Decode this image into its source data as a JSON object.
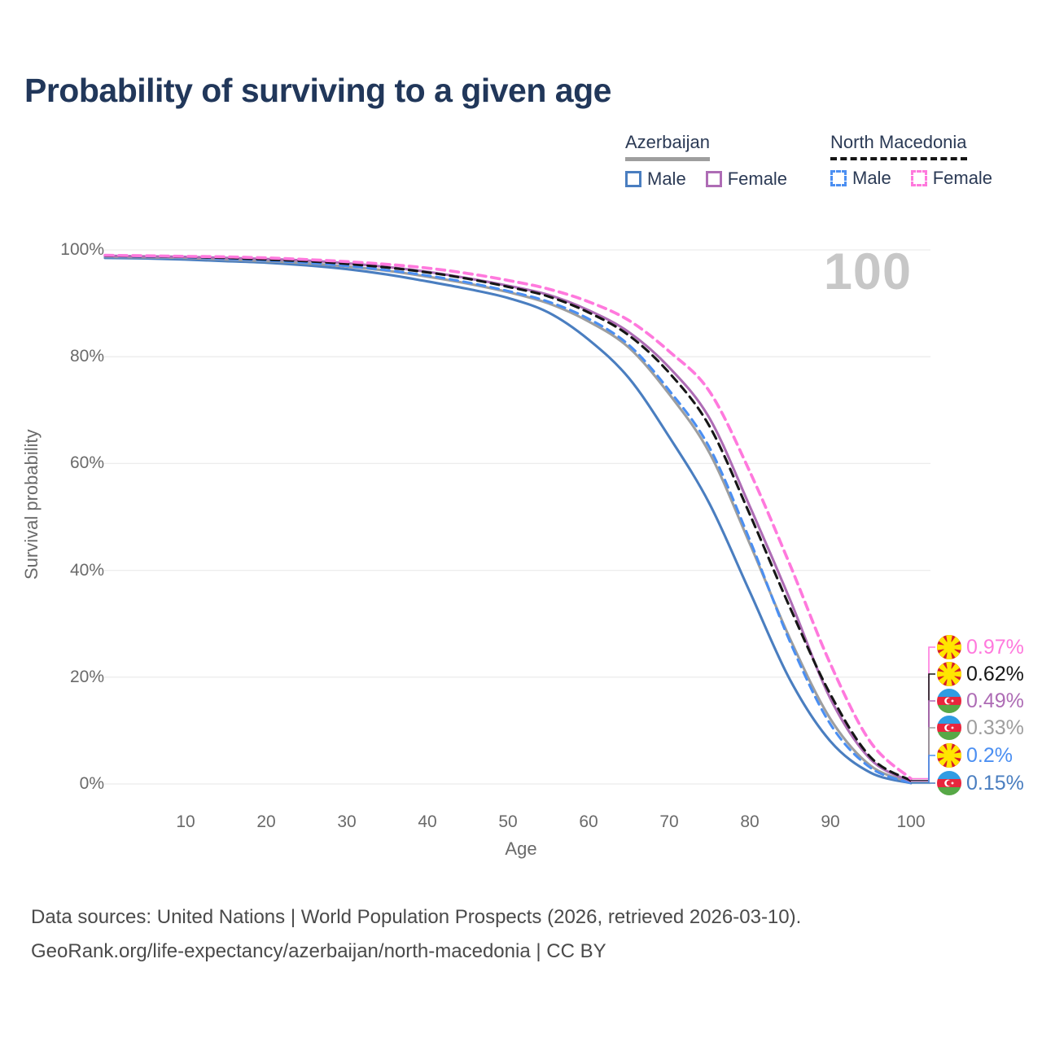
{
  "page": {
    "title": "Probability of surviving to a given age"
  },
  "watermark": "100",
  "legend": {
    "groups": [
      {
        "title": "Azerbaijan",
        "underline": {
          "style": "solid",
          "color": "#9e9e9e"
        },
        "items": [
          {
            "label": "Male",
            "color": "#4a7ec0",
            "dashed": false
          },
          {
            "label": "Female",
            "color": "#ae6cb5",
            "dashed": false
          }
        ]
      },
      {
        "title": "North Macedonia",
        "underline": {
          "style": "dashed",
          "color": "#161616"
        },
        "items": [
          {
            "label": "Male",
            "color": "#4b8ff2",
            "dashed": true
          },
          {
            "label": "Female",
            "color": "#ff79dd",
            "dashed": true
          }
        ]
      }
    ]
  },
  "chart_data": {
    "type": "line",
    "title": "Probability of surviving to a given age",
    "xlabel": "Age",
    "ylabel": "Survival probability",
    "xlim": [
      0,
      100
    ],
    "ylim": [
      0,
      100
    ],
    "grid": "horizontal",
    "legend_position": "top-right",
    "x_ticks": [
      "10",
      "20",
      "30",
      "40",
      "50",
      "60",
      "70",
      "80",
      "90",
      "100"
    ],
    "y_ticks": [
      "0%",
      "20%",
      "40%",
      "60%",
      "80%",
      "100%"
    ],
    "ages": [
      0,
      5,
      10,
      15,
      20,
      25,
      30,
      35,
      40,
      45,
      50,
      55,
      60,
      65,
      70,
      75,
      80,
      85,
      90,
      95,
      100
    ],
    "series": [
      {
        "id": "az_male",
        "country": "Azerbaijan",
        "sex": "Male",
        "label": "Azerbaijan Male",
        "color": "#4a7ec0",
        "line_style": "solid",
        "values": [
          98.5,
          98.4,
          98.2,
          97.9,
          97.6,
          97.1,
          96.4,
          95.4,
          94.1,
          92.7,
          91.0,
          88.3,
          83.2,
          76.0,
          65.0,
          52.5,
          36.0,
          19.5,
          8.0,
          2.1,
          0.15
        ]
      },
      {
        "id": "az_both",
        "country": "Azerbaijan",
        "sex": "Both sexes",
        "label": "Azerbaijan",
        "color": "#9e9e9e",
        "line_style": "solid",
        "values": [
          98.7,
          98.6,
          98.5,
          98.2,
          97.9,
          97.5,
          96.9,
          96.1,
          95.0,
          93.7,
          92.1,
          90.0,
          86.6,
          81.7,
          73.0,
          62.0,
          45.0,
          27.2,
          12.2,
          3.4,
          0.33
        ]
      },
      {
        "id": "nm_male",
        "country": "North Macedonia",
        "sex": "Male",
        "label": "North Macedonia Male",
        "color": "#4b8ff2",
        "line_style": "dashed",
        "values": [
          98.8,
          98.7,
          98.6,
          98.3,
          98.0,
          97.6,
          97.0,
          96.2,
          95.2,
          93.9,
          92.3,
          90.3,
          87.1,
          82.2,
          73.7,
          63.0,
          45.7,
          26.6,
          11.2,
          3.0,
          0.2
        ]
      },
      {
        "id": "az_female",
        "country": "Azerbaijan",
        "sex": "Female",
        "label": "Azerbaijan Female",
        "color": "#ae6cb5",
        "line_style": "solid",
        "values": [
          98.9,
          98.8,
          98.7,
          98.5,
          98.3,
          98.0,
          97.5,
          96.8,
          95.9,
          94.7,
          93.3,
          91.6,
          88.7,
          84.6,
          78.0,
          68.5,
          52.0,
          34.5,
          16.0,
          4.6,
          0.49
        ]
      },
      {
        "id": "nm_both",
        "country": "North Macedonia",
        "sex": "Both sexes",
        "label": "North Macedonia",
        "color": "#161616",
        "line_style": "dashed",
        "values": [
          98.9,
          98.8,
          98.7,
          98.5,
          98.2,
          97.9,
          97.4,
          96.7,
          95.8,
          94.6,
          93.1,
          91.3,
          88.3,
          84.0,
          77.0,
          67.0,
          50.5,
          33.0,
          16.8,
          5.0,
          0.62
        ]
      },
      {
        "id": "nm_female",
        "country": "North Macedonia",
        "sex": "Female",
        "label": "North Macedonia Female",
        "color": "#ff79dd",
        "line_style": "dashed",
        "values": [
          99.0,
          98.9,
          98.8,
          98.7,
          98.5,
          98.2,
          97.8,
          97.3,
          96.6,
          95.6,
          94.3,
          92.7,
          90.3,
          86.8,
          81.0,
          73.5,
          58.5,
          41.0,
          22.5,
          7.8,
          0.97
        ]
      }
    ]
  },
  "end_labels": [
    {
      "text": "0.97%",
      "flag": "north-macedonia",
      "series": "nm_female",
      "color": "#ff79dd"
    },
    {
      "text": "0.62%",
      "flag": "north-macedonia",
      "series": "nm_both",
      "color": "#161616"
    },
    {
      "text": "0.49%",
      "flag": "azerbaijan",
      "series": "az_female",
      "color": "#ae6cb5"
    },
    {
      "text": "0.33%",
      "flag": "azerbaijan",
      "series": "az_both",
      "color": "#9e9e9e"
    },
    {
      "text": "0.2%",
      "flag": "north-macedonia",
      "series": "nm_male",
      "color": "#4b8ff2"
    },
    {
      "text": "0.15%",
      "flag": "azerbaijan",
      "series": "az_male",
      "color": "#4a7ec0"
    }
  ],
  "footer": {
    "line1": "Data sources: United Nations | World Population Prospects (2026, retrieved 2026-03-10).",
    "line2": "GeoRank.org/life-expectancy/azerbaijan/north-macedonia | CC BY"
  }
}
